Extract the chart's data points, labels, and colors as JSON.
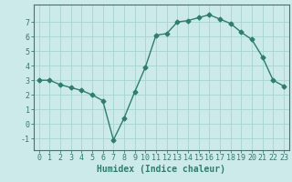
{
  "x": [
    0,
    1,
    2,
    3,
    4,
    5,
    6,
    7,
    8,
    9,
    10,
    11,
    12,
    13,
    14,
    15,
    16,
    17,
    18,
    19,
    20,
    21,
    22,
    23
  ],
  "y": [
    3,
    3,
    2.7,
    2.5,
    2.3,
    2.0,
    1.6,
    -1.1,
    0.4,
    2.2,
    3.9,
    6.1,
    6.2,
    7.0,
    7.1,
    7.3,
    7.5,
    7.2,
    6.9,
    6.3,
    5.8,
    4.6,
    3.0,
    2.6
  ],
  "line_color": "#2e7d6e",
  "marker": "D",
  "marker_size": 2.5,
  "bg_color": "#cdeaea",
  "grid_color": "#a8d4d0",
  "axis_color": "#2e7d6e",
  "xlabel": "Humidex (Indice chaleur)",
  "xlabel_fontsize": 7,
  "xlim": [
    -0.5,
    23.5
  ],
  "ylim": [
    -1.8,
    8.2
  ],
  "yticks": [
    -1,
    0,
    1,
    2,
    3,
    4,
    5,
    6,
    7
  ],
  "xticks": [
    0,
    1,
    2,
    3,
    4,
    5,
    6,
    7,
    8,
    9,
    10,
    11,
    12,
    13,
    14,
    15,
    16,
    17,
    18,
    19,
    20,
    21,
    22,
    23
  ],
  "tick_fontsize": 6,
  "line_width": 1.0
}
